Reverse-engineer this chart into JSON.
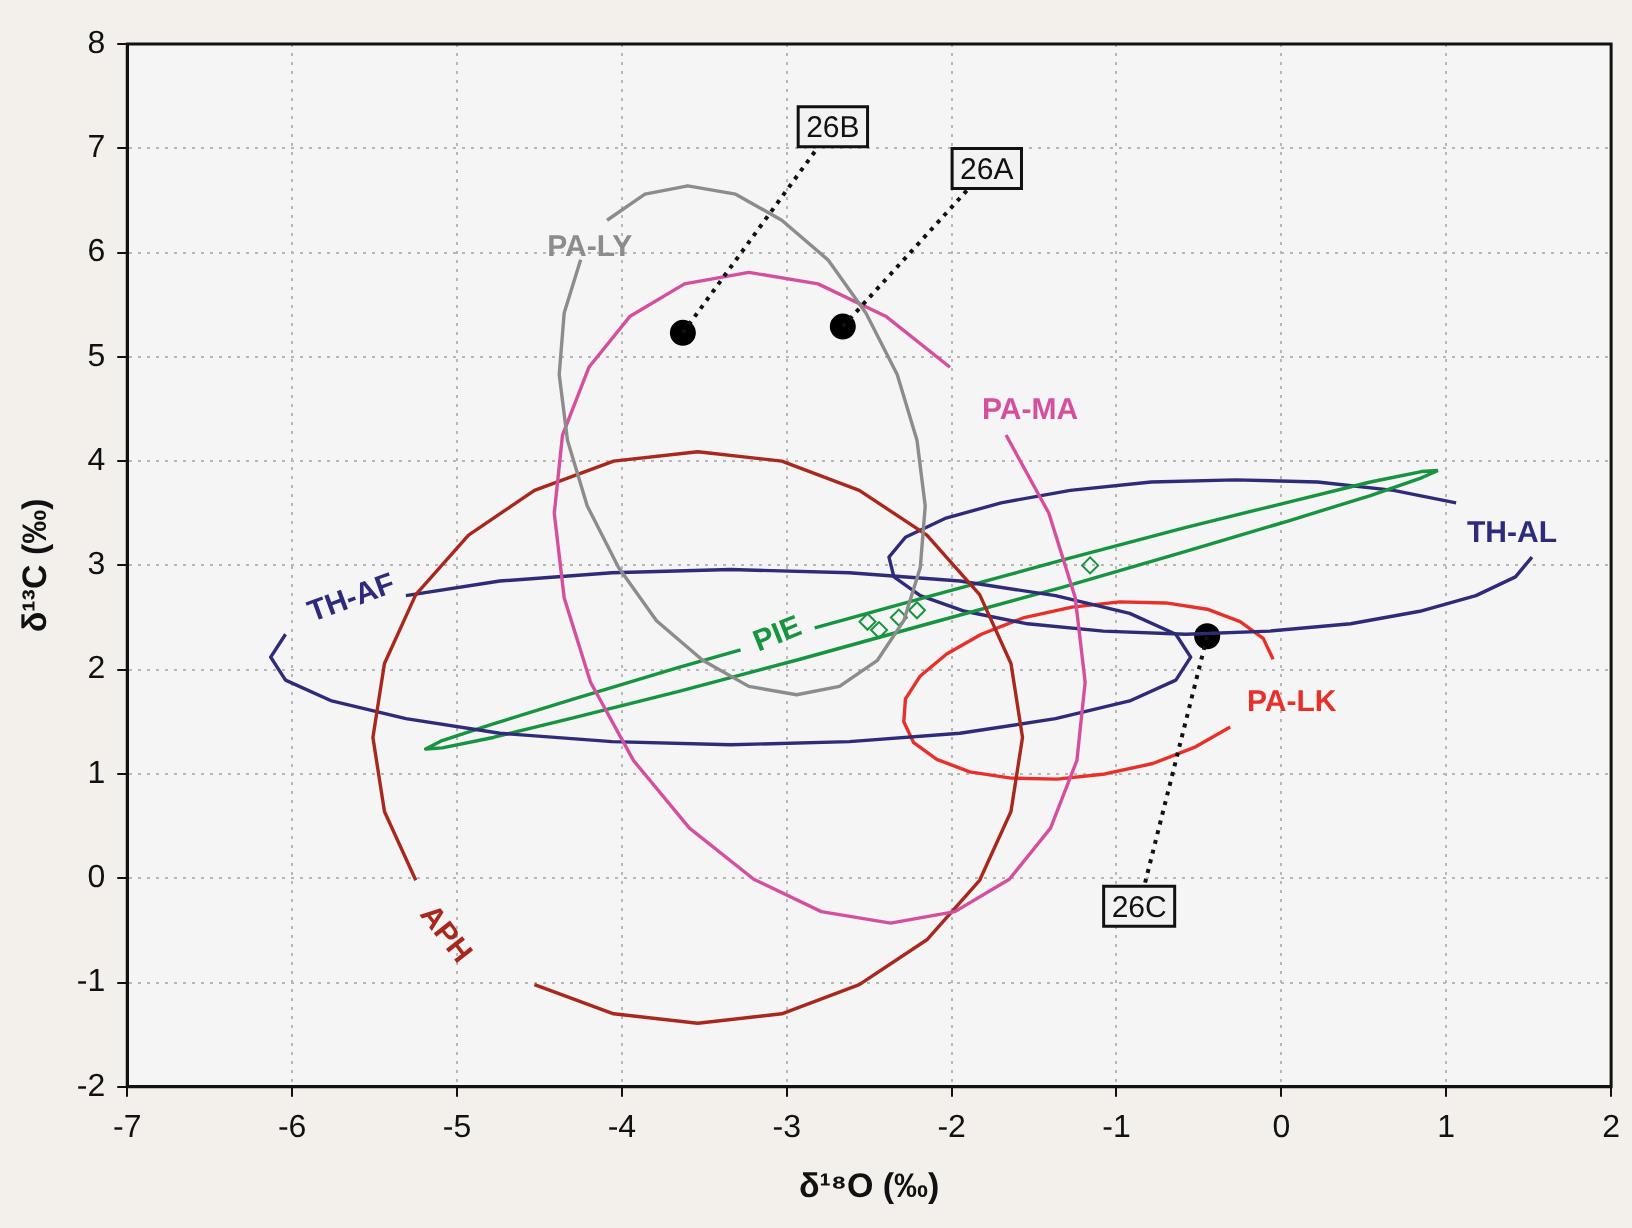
{
  "chart_data": {
    "type": "scatter",
    "xlabel": "δ¹⁸O (‰)",
    "ylabel": "δ¹³C (‰)",
    "xlim": [
      -7,
      2
    ],
    "xticks": [
      -7,
      -6,
      -5,
      -4,
      -3,
      -2,
      -1,
      0,
      1,
      2
    ],
    "ylim": [
      -2,
      8
    ],
    "yticks": [
      -2,
      -1,
      0,
      1,
      2,
      3,
      4,
      5,
      6,
      7,
      8
    ],
    "grid": true,
    "legend": false,
    "series": [
      {
        "type": "line",
        "name": "PA-LY",
        "color": "#8c8c8c",
        "marker": "none",
        "x": [
          -4.25,
          -4.35,
          -4.38,
          -4.33,
          -4.21,
          -4.02,
          -3.79,
          -3.51,
          -3.23,
          -2.94,
          -2.68,
          -2.45,
          -2.29,
          -2.19,
          -2.16,
          -2.21,
          -2.33,
          -2.52,
          -2.75,
          -3.03,
          -3.31,
          -3.6,
          -3.86,
          -4.09
        ],
        "values": [
          5.93,
          5.42,
          4.83,
          4.2,
          3.57,
          2.98,
          2.47,
          2.09,
          1.84,
          1.76,
          1.84,
          2.09,
          2.47,
          2.98,
          3.57,
          4.2,
          4.83,
          5.42,
          5.93,
          6.31,
          6.56,
          6.64,
          6.56,
          6.31
        ]
      },
      {
        "type": "line",
        "name": "PA-MA",
        "color": "#d4509e",
        "marker": "none",
        "x": [
          -2.01,
          -2.4,
          -2.81,
          -3.23,
          -3.62,
          -3.95,
          -4.2,
          -4.36,
          -4.41,
          -4.35,
          -4.19,
          -3.93,
          -3.59,
          -3.2,
          -2.79,
          -2.37,
          -1.98,
          -1.65,
          -1.4,
          -1.24,
          -1.19,
          -1.25,
          -1.41,
          -1.67
        ],
        "values": [
          4.9,
          5.39,
          5.7,
          5.81,
          5.7,
          5.39,
          4.9,
          4.25,
          3.5,
          2.69,
          1.88,
          1.13,
          0.48,
          -0.01,
          -0.32,
          -0.43,
          -0.32,
          -0.01,
          0.48,
          1.13,
          1.88,
          2.69,
          3.5,
          4.25
        ]
      },
      {
        "type": "line",
        "name": "APH",
        "color": "#a8281e",
        "marker": "none",
        "x": [
          -4.53,
          -4.05,
          -3.54,
          -3.03,
          -2.56,
          -2.15,
          -1.83,
          -1.64,
          -1.57,
          -1.64,
          -1.83,
          -2.15,
          -2.56,
          -3.03,
          -3.54,
          -4.05,
          -4.53,
          -4.93,
          -5.25,
          -5.44,
          -5.51,
          -5.44,
          -5.25
        ],
        "values": [
          -1.02,
          -1.3,
          -1.39,
          -1.3,
          -1.02,
          -0.59,
          -0.02,
          0.64,
          1.35,
          2.06,
          2.72,
          3.29,
          3.72,
          4.0,
          4.09,
          4.0,
          3.72,
          3.29,
          2.72,
          2.06,
          1.35,
          0.64,
          -0.02
        ]
      },
      {
        "type": "line",
        "name": "TH-AF",
        "color": "#2e2c7a",
        "marker": "none",
        "x": [
          -6.04,
          -6.13,
          -6.04,
          -5.76,
          -5.31,
          -4.74,
          -4.06,
          -3.34,
          -2.62,
          -1.95,
          -1.37,
          -0.92,
          -0.64,
          -0.55,
          -0.64,
          -0.92,
          -1.37,
          -1.95,
          -2.62,
          -3.34,
          -4.06,
          -4.74,
          -5.31
        ],
        "values": [
          2.34,
          2.12,
          1.9,
          1.7,
          1.53,
          1.39,
          1.31,
          1.28,
          1.31,
          1.39,
          1.53,
          1.7,
          1.9,
          2.12,
          2.34,
          2.54,
          2.71,
          2.85,
          2.93,
          2.96,
          2.93,
          2.85,
          2.71
        ]
      },
      {
        "type": "line",
        "name": "PIE",
        "color": "#17943f",
        "marker": "none",
        "x": [
          0.95,
          0.85,
          0.54,
          0.05,
          -0.59,
          -1.33,
          -2.12,
          -2.83,
          -3.05,
          -3.28,
          -3.66,
          -4.29,
          -4.78,
          -5.09,
          -5.19,
          -5.09,
          -4.78,
          -4.29,
          -3.66,
          -2.92,
          -2.12,
          -1.33,
          -0.59,
          0.05,
          0.54,
          0.85,
          0.95
        ],
        "values": [
          3.91,
          3.9,
          3.8,
          3.61,
          3.36,
          3.05,
          2.71,
          2.4,
          null,
          2.19,
          2.02,
          1.72,
          1.48,
          1.32,
          1.24,
          1.25,
          1.35,
          1.54,
          1.79,
          2.1,
          2.45,
          2.79,
          3.13,
          3.43,
          3.67,
          3.84,
          3.91
        ]
      },
      {
        "type": "line",
        "name": "TH-AL",
        "color": "#2e2c7a",
        "marker": "none",
        "x": [
          1.06,
          0.68,
          0.22,
          -0.28,
          -0.79,
          -1.28,
          -1.7,
          -2.04,
          -2.28,
          -2.38,
          -2.35,
          -2.19,
          -1.92,
          -1.54,
          -1.08,
          -0.58,
          -0.07,
          0.42,
          0.84,
          1.18,
          1.42,
          1.52
        ],
        "values": [
          3.6,
          3.72,
          3.8,
          3.82,
          3.8,
          3.72,
          3.6,
          3.45,
          3.27,
          3.08,
          2.89,
          2.71,
          2.56,
          2.44,
          2.37,
          2.34,
          2.37,
          2.44,
          2.56,
          2.71,
          2.89,
          3.08
        ]
      },
      {
        "type": "line",
        "name": "PA-LK",
        "color": "#e8302a",
        "marker": "none",
        "x": [
          -0.05,
          -0.11,
          -0.25,
          -0.45,
          -0.7,
          -0.98,
          -1.27,
          -1.56,
          -1.82,
          -2.03,
          -2.19,
          -2.28,
          -2.29,
          -2.23,
          -2.09,
          -1.89,
          -1.64,
          -1.36,
          -1.07,
          -0.78,
          -0.52,
          -0.31
        ],
        "values": [
          2.1,
          2.3,
          2.46,
          2.58,
          2.64,
          2.65,
          2.6,
          2.5,
          2.34,
          2.15,
          1.94,
          1.72,
          1.5,
          1.3,
          1.14,
          1.02,
          0.96,
          0.95,
          1.0,
          1.1,
          1.26,
          1.45
        ]
      },
      {
        "type": "scatter",
        "color": "#17943f",
        "marker": "diamond",
        "x": [
          -2.51,
          -2.44,
          -2.32,
          -2.21,
          -1.16
        ],
        "values": [
          2.46,
          2.38,
          2.5,
          2.57,
          3.0
        ]
      },
      {
        "type": "scatter",
        "color": "#000000",
        "marker": "circle",
        "x": [
          -3.63,
          -2.66,
          -0.45
        ],
        "values": [
          5.23,
          5.29,
          2.32
        ]
      }
    ],
    "annotations": [
      {
        "text": "26B",
        "x": -3.63,
        "y": 5.23
      },
      {
        "text": "26A",
        "x": -2.66,
        "y": 5.29
      },
      {
        "text": "26C",
        "x": -0.45,
        "y": 2.32
      }
    ]
  }
}
